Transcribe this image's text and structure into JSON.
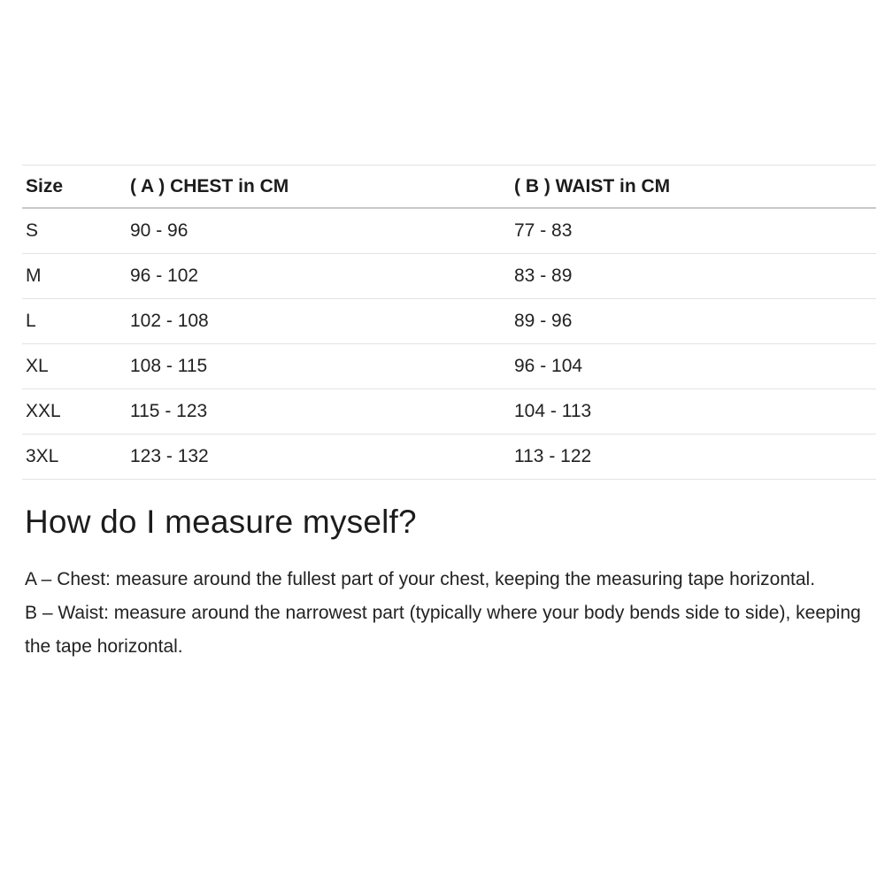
{
  "colors": {
    "background": "#ffffff",
    "text": "#222222",
    "heading_text": "#1c1c1c",
    "table_header_border": "#c9c9c9",
    "table_row_border": "#e3e3e3"
  },
  "size_table": {
    "columns": [
      "Size",
      "( A ) CHEST in CM",
      "( B ) WAIST in CM"
    ],
    "rows": [
      {
        "size": "S",
        "chest": "90 - 96",
        "waist": "77 - 83"
      },
      {
        "size": "M",
        "chest": "96 - 102",
        "waist": "83 - 89"
      },
      {
        "size": "L",
        "chest": "102 - 108",
        "waist": "89 - 96"
      },
      {
        "size": "XL",
        "chest": "108 - 115",
        "waist": "96 - 104"
      },
      {
        "size": "XXL",
        "chest": "115 - 123",
        "waist": "104 - 113"
      },
      {
        "size": "3XL",
        "chest": "123 - 132",
        "waist": "113 - 122"
      }
    ]
  },
  "measure_section": {
    "heading": "How do I measure myself?",
    "paragraphs": [
      "A – Chest: measure around the fullest part of your chest, keeping the measuring tape horizontal.",
      "B – Waist: measure around the narrowest part (typically where your body bends side to side), keeping the tape horizontal."
    ]
  }
}
